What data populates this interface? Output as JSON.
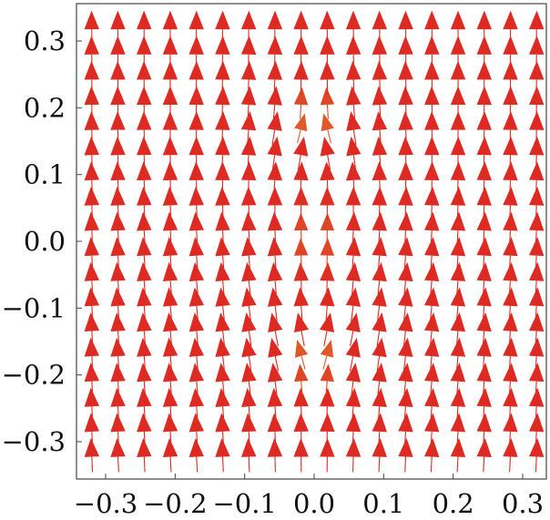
{
  "chart_data": {
    "type": "vector_field",
    "title": "",
    "xlabel": "",
    "ylabel": "",
    "xlim": [
      -0.36,
      0.36
    ],
    "ylim": [
      -0.36,
      0.36
    ],
    "grid": false,
    "frame": true,
    "x_ticks": [
      {
        "value": -0.3,
        "label": "−0.3"
      },
      {
        "value": -0.2,
        "label": "−0.2"
      },
      {
        "value": -0.1,
        "label": "−0.1"
      },
      {
        "value": 0.0,
        "label": "0.0"
      },
      {
        "value": 0.1,
        "label": "0.1"
      },
      {
        "value": 0.2,
        "label": "0.2"
      },
      {
        "value": 0.3,
        "label": "0.3"
      }
    ],
    "y_ticks": [
      {
        "value": 0.3,
        "label": "0.3"
      },
      {
        "value": 0.2,
        "label": "0.2"
      },
      {
        "value": 0.1,
        "label": "0.1"
      },
      {
        "value": 0.0,
        "label": "0.0"
      },
      {
        "value": -0.1,
        "label": "−0.1"
      },
      {
        "value": -0.2,
        "label": "−0.2"
      },
      {
        "value": -0.3,
        "label": "−0.3"
      }
    ],
    "field": {
      "description": "dipole-like field: strong upward flow far from origin, downward flow on the central column, arrows curving around two points near (0, ±0.15)",
      "source_points": [
        [
          0.0,
          0.15
        ],
        [
          0.0,
          -0.15
        ]
      ],
      "grid_x_range": [
        -0.32,
        0.32
      ],
      "grid_y_range": [
        -0.32,
        0.32
      ],
      "grid_count": 18
    },
    "color_scale": [
      "#3b3bd9",
      "#7fbf7f",
      "#c9c23a",
      "#e3802e",
      "#dd2a22"
    ]
  }
}
